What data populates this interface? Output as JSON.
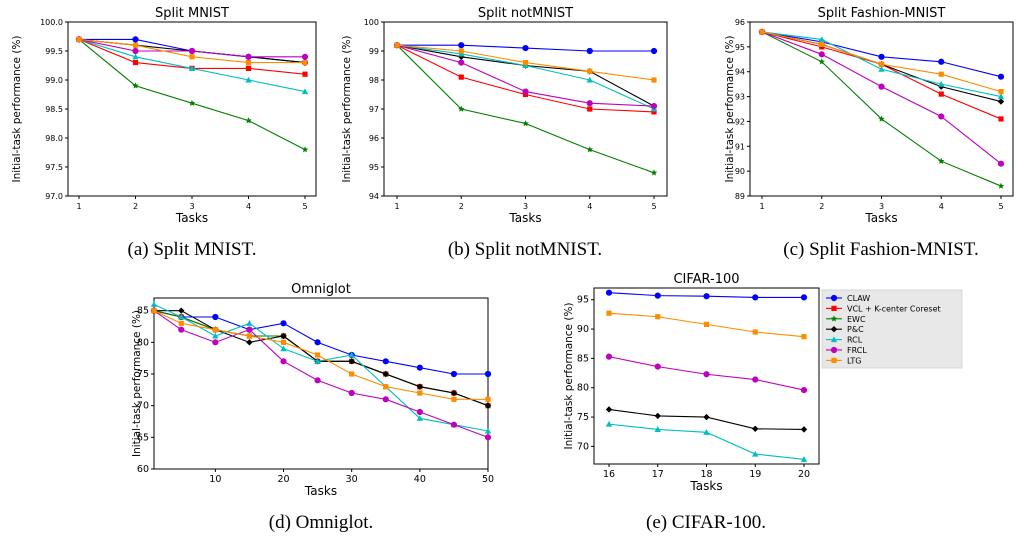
{
  "series_styles": [
    {
      "name": "CLAW",
      "color": "#0000ff",
      "marker": "circle"
    },
    {
      "name": "VCL + K-center Coreset",
      "color": "#ff0000",
      "marker": "square"
    },
    {
      "name": "EWC",
      "color": "#008000",
      "marker": "star"
    },
    {
      "name": "P&C",
      "color": "#000000",
      "marker": "diamond"
    },
    {
      "name": "RCL",
      "color": "#00bfbf",
      "marker": "triangle"
    },
    {
      "name": "FRCL",
      "color": "#bf00bf",
      "marker": "circle"
    },
    {
      "name": "LTG",
      "color": "#ff8c00",
      "marker": "square"
    }
  ],
  "legend_entries": [
    "CLAW",
    "VCL + K-center Coreset",
    "EWC",
    "P&C",
    "RCL",
    "FRCL",
    "LTG"
  ],
  "captions": [
    "(a) Split MNIST.",
    "(b) Split notMNIST.",
    "(c) Split Fashion-MNIST.",
    "(d) Omniglot.",
    "(e) CIFAR-100."
  ],
  "chart_data": [
    {
      "type": "line",
      "title": "Split MNIST",
      "xlabel": "Tasks",
      "ylabel": "Initial-task performance (%)",
      "x": [
        1,
        2,
        3,
        4,
        5
      ],
      "xticks": [
        "1",
        "2",
        "3",
        "4",
        "5"
      ],
      "yticks": [
        "97.0",
        "97.5",
        "98.0",
        "98.5",
        "99.0",
        "99.5",
        "100.0"
      ],
      "ylim": [
        97.0,
        100.0
      ],
      "tick_decimals": 1,
      "series": [
        {
          "style": 0,
          "values": [
            99.7,
            99.7,
            99.5,
            99.4,
            99.3
          ]
        },
        {
          "style": 1,
          "values": [
            99.7,
            99.3,
            99.2,
            99.2,
            99.1
          ]
        },
        {
          "style": 2,
          "values": [
            99.7,
            98.9,
            98.6,
            98.3,
            97.8
          ]
        },
        {
          "style": 3,
          "values": [
            99.7,
            99.6,
            99.5,
            99.4,
            99.3
          ]
        },
        {
          "style": 4,
          "values": [
            99.7,
            99.4,
            99.2,
            99.0,
            98.8
          ]
        },
        {
          "style": 5,
          "values": [
            99.7,
            99.5,
            99.5,
            99.4,
            99.4
          ]
        },
        {
          "style": 6,
          "values": [
            99.7,
            99.6,
            99.4,
            99.3,
            99.3
          ]
        }
      ]
    },
    {
      "type": "line",
      "title": "Split notMNIST",
      "xlabel": "Tasks",
      "ylabel": "Initial-task performance (%)",
      "x": [
        1,
        2,
        3,
        4,
        5
      ],
      "xticks": [
        "1",
        "2",
        "3",
        "4",
        "5"
      ],
      "yticks": [
        "94",
        "95",
        "96",
        "97",
        "98",
        "99",
        "100"
      ],
      "ylim": [
        94,
        100
      ],
      "tick_decimals": 0,
      "series": [
        {
          "style": 0,
          "values": [
            99.2,
            99.2,
            99.1,
            99.0,
            99.0
          ]
        },
        {
          "style": 1,
          "values": [
            99.2,
            98.1,
            97.5,
            97.0,
            96.9
          ]
        },
        {
          "style": 2,
          "values": [
            99.2,
            97.0,
            96.5,
            95.6,
            94.8
          ]
        },
        {
          "style": 3,
          "values": [
            99.2,
            98.8,
            98.5,
            98.3,
            97.1
          ]
        },
        {
          "style": 4,
          "values": [
            99.2,
            98.9,
            98.5,
            98.0,
            97.0
          ]
        },
        {
          "style": 5,
          "values": [
            99.2,
            98.6,
            97.6,
            97.2,
            97.1
          ]
        },
        {
          "style": 6,
          "values": [
            99.2,
            99.0,
            98.6,
            98.3,
            98.0
          ]
        }
      ]
    },
    {
      "type": "line",
      "title": "Split Fashion-MNIST",
      "xlabel": "Tasks",
      "ylabel": "Initial-task performance (%)",
      "x": [
        1,
        2,
        3,
        4,
        5
      ],
      "xticks": [
        "1",
        "2",
        "3",
        "4",
        "5"
      ],
      "yticks": [
        "89",
        "90",
        "91",
        "92",
        "93",
        "94",
        "95",
        "96"
      ],
      "ylim": [
        89,
        96
      ],
      "tick_decimals": 0,
      "series": [
        {
          "style": 0,
          "values": [
            95.6,
            95.2,
            94.6,
            94.4,
            93.8
          ]
        },
        {
          "style": 1,
          "values": [
            95.6,
            95.0,
            94.3,
            93.1,
            92.1
          ]
        },
        {
          "style": 2,
          "values": [
            95.6,
            94.4,
            92.1,
            90.4,
            89.4
          ]
        },
        {
          "style": 3,
          "values": [
            95.6,
            95.1,
            94.3,
            93.4,
            92.8
          ]
        },
        {
          "style": 4,
          "values": [
            95.6,
            95.3,
            94.1,
            93.5,
            93.0
          ]
        },
        {
          "style": 5,
          "values": [
            95.6,
            94.7,
            93.4,
            92.2,
            90.3
          ]
        },
        {
          "style": 6,
          "values": [
            95.6,
            95.1,
            94.3,
            93.9,
            93.2
          ]
        }
      ]
    },
    {
      "type": "line",
      "title": "Omniglot",
      "xlabel": "Tasks",
      "ylabel": "Initial-task performance (%)",
      "x": [
        1,
        5,
        10,
        15,
        20,
        25,
        30,
        35,
        40,
        45,
        50
      ],
      "xticks": [
        "10",
        "20",
        "30",
        "40",
        "50"
      ],
      "xtick_values": [
        10,
        20,
        30,
        40,
        50
      ],
      "xlim": [
        1,
        50
      ],
      "yticks": [
        "60",
        "65",
        "70",
        "75",
        "80",
        "85"
      ],
      "ylim": [
        60,
        87
      ],
      "tick_decimals": 0,
      "series": [
        {
          "style": 0,
          "values": [
            85,
            84,
            84,
            82,
            83,
            80,
            78,
            77,
            76,
            75,
            75
          ]
        },
        {
          "style": 1,
          "values": [
            85,
            84,
            82,
            81,
            81,
            77,
            77,
            75,
            73,
            72,
            70
          ]
        },
        {
          "style": 2,
          "values": [
            85,
            84,
            82,
            81,
            81,
            77,
            77,
            75,
            73,
            72,
            70
          ]
        },
        {
          "style": 3,
          "values": [
            85,
            85,
            82,
            80,
            81,
            77,
            77,
            75,
            73,
            72,
            70
          ]
        },
        {
          "style": 4,
          "values": [
            86,
            84,
            81,
            83,
            79,
            77,
            78,
            73,
            68,
            67,
            66
          ]
        },
        {
          "style": 5,
          "values": [
            85,
            82,
            80,
            82,
            77,
            74,
            72,
            71,
            69,
            67,
            65
          ]
        },
        {
          "style": 6,
          "values": [
            85,
            83,
            82,
            81,
            80,
            78,
            75,
            73,
            72,
            71,
            71
          ]
        }
      ]
    },
    {
      "type": "line",
      "title": "CIFAR-100",
      "xlabel": "Tasks",
      "ylabel": "Initial-task performance (%)",
      "x": [
        16,
        17,
        18,
        19,
        20
      ],
      "xticks": [
        "16",
        "17",
        "18",
        "19",
        "20"
      ],
      "yticks": [
        "70",
        "75",
        "80",
        "85",
        "90",
        "95"
      ],
      "ylim": [
        67,
        97
      ],
      "tick_decimals": 0,
      "series": [
        {
          "style": 0,
          "values": [
            96.2,
            95.7,
            95.6,
            95.4,
            95.4
          ]
        },
        {
          "style": 6,
          "values": [
            92.7,
            92.1,
            90.8,
            89.5,
            88.7
          ]
        },
        {
          "style": 5,
          "values": [
            85.3,
            83.6,
            82.3,
            81.4,
            79.6
          ]
        },
        {
          "style": 3,
          "values": [
            76.3,
            75.2,
            75.0,
            73.0,
            72.9
          ]
        },
        {
          "style": 4,
          "values": [
            73.8,
            72.9,
            72.4,
            68.7,
            67.8
          ]
        }
      ]
    }
  ]
}
